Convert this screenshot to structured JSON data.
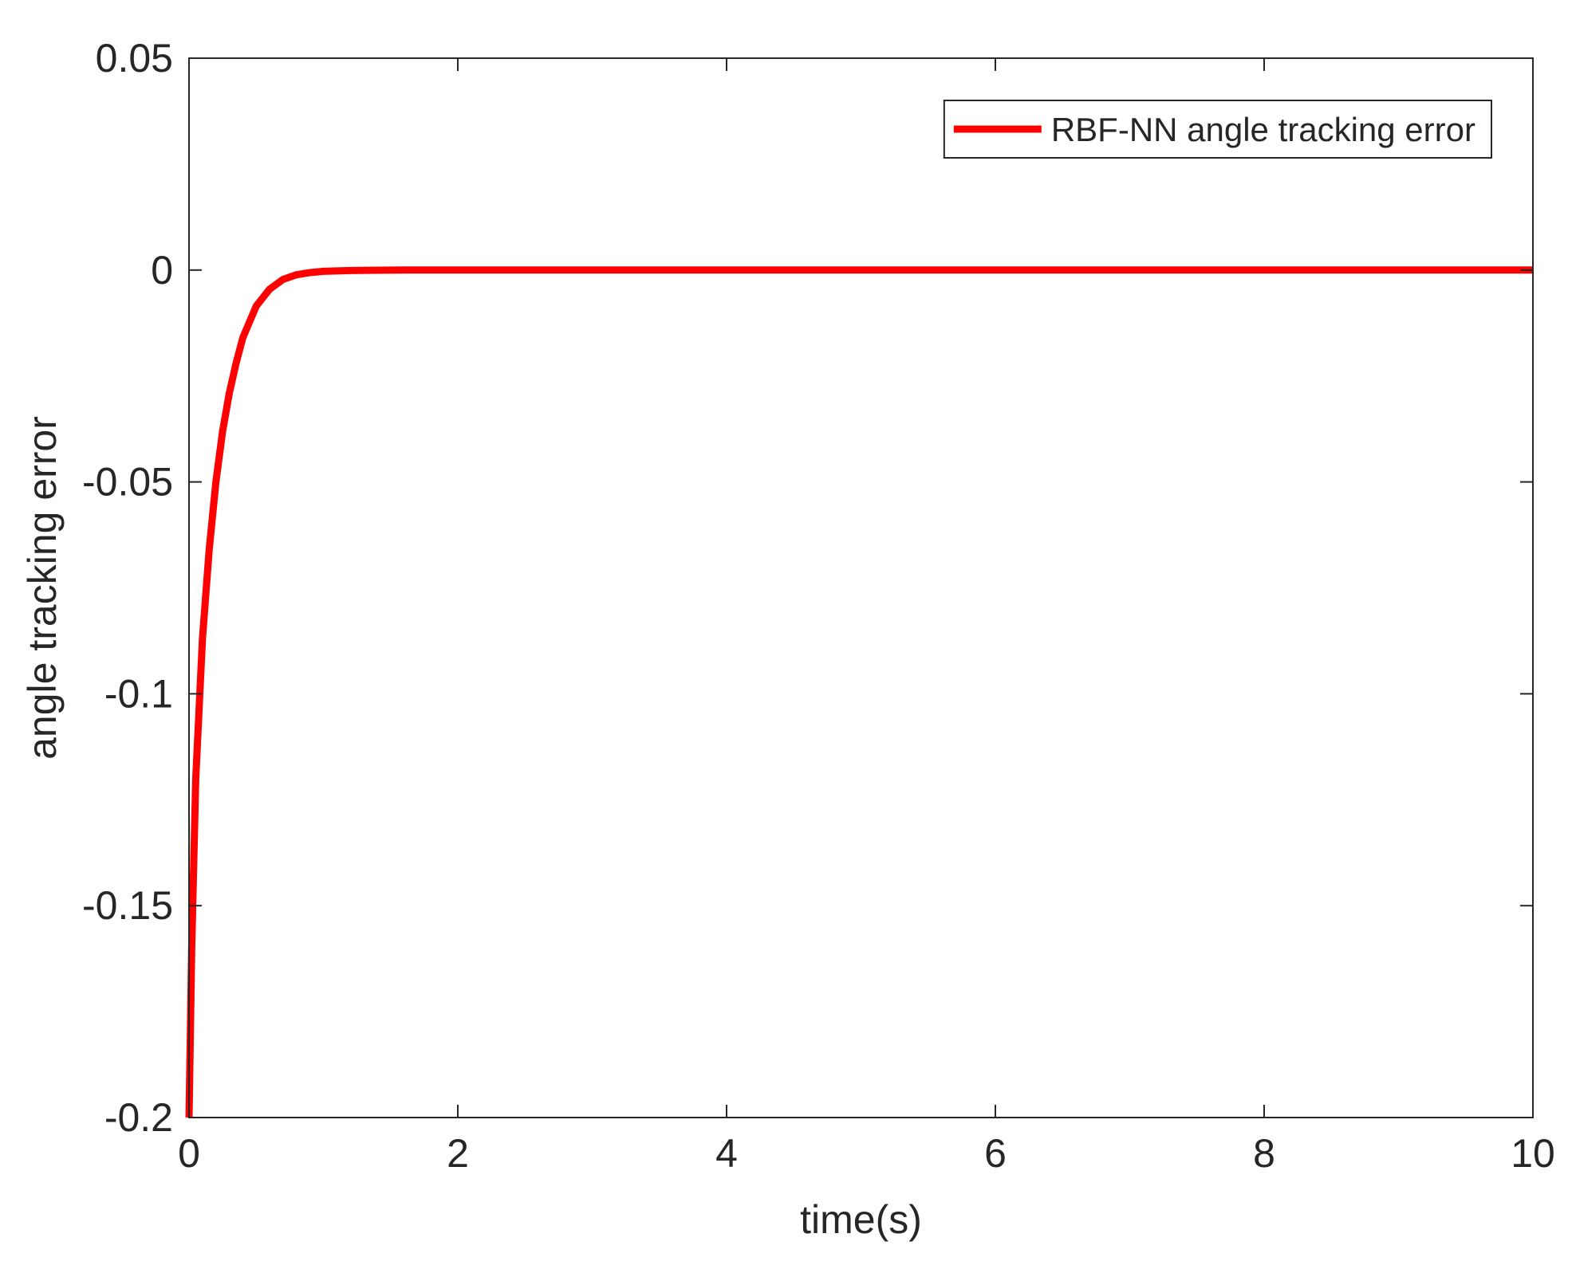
{
  "chart_data": {
    "type": "line",
    "title": "",
    "xlabel": "time(s)",
    "ylabel": "angle tracking error",
    "xlim": [
      0,
      10
    ],
    "ylim": [
      -0.2,
      0.05
    ],
    "x_ticks": [
      0,
      2,
      4,
      6,
      8,
      10
    ],
    "x_tick_labels": [
      "0",
      "2",
      "4",
      "6",
      "8",
      "10"
    ],
    "y_ticks": [
      -0.2,
      -0.15,
      -0.1,
      -0.05,
      0,
      0.05
    ],
    "y_tick_labels": [
      "-0.2",
      "-0.15",
      "-0.1",
      "-0.05",
      "0",
      "0.05"
    ],
    "grid": false,
    "legend_position": "top-right",
    "series": [
      {
        "name": "RBF-NN angle tracking error",
        "color": "#ff0000",
        "x": [
          0,
          0.02,
          0.05,
          0.1,
          0.15,
          0.2,
          0.25,
          0.3,
          0.35,
          0.4,
          0.5,
          0.6,
          0.7,
          0.8,
          0.9,
          1.0,
          1.2,
          1.4,
          1.6,
          1.8,
          2,
          3,
          4,
          5,
          6,
          7,
          8,
          9,
          10
        ],
        "y": [
          -0.2,
          -0.16,
          -0.12,
          -0.087,
          -0.066,
          -0.05,
          -0.038,
          -0.029,
          -0.022,
          -0.016,
          -0.0085,
          -0.0045,
          -0.0022,
          -0.0011,
          -0.0006,
          -0.0003,
          -0.0001,
          -3e-05,
          0,
          0,
          0,
          0,
          0,
          0,
          0,
          0,
          0,
          0,
          0
        ]
      }
    ]
  }
}
